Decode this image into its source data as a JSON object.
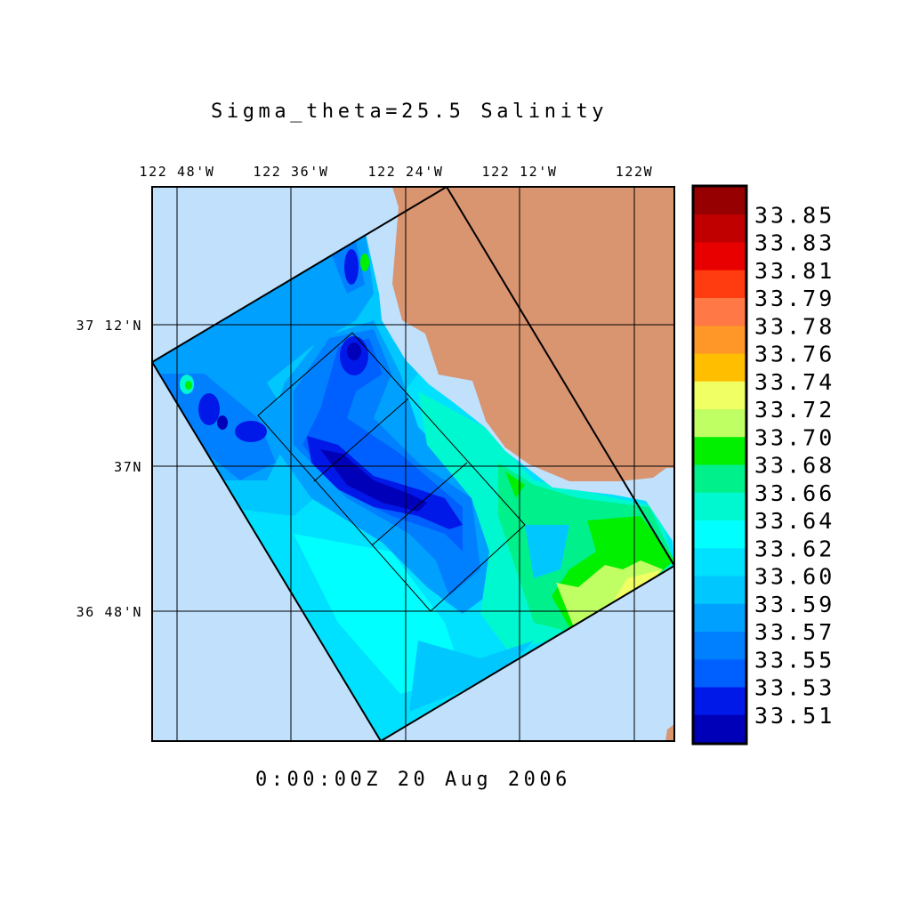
{
  "chart_data": {
    "type": "heatmap",
    "title": "Sigma_theta=25.5 Salinity",
    "time_label": "0:00:00Z  20 Aug 2006",
    "x_tick_labels": [
      "122 48'W",
      "122 36'W",
      "122 24'W",
      "122 12'W",
      "122W"
    ],
    "y_tick_labels": [
      "37 12'N",
      "37N",
      "36 48'N"
    ],
    "colorbar": {
      "labels": [
        "33.85",
        "33.83",
        "33.81",
        "33.79",
        "33.78",
        "33.76",
        "33.74",
        "33.72",
        "33.70",
        "33.68",
        "33.66",
        "33.64",
        "33.62",
        "33.60",
        "33.59",
        "33.57",
        "33.55",
        "33.53",
        "33.51"
      ],
      "colors": [
        "#960000",
        "#c00000",
        "#e80000",
        "#ff3c0f",
        "#ff7846",
        "#ff9628",
        "#ffbe00",
        "#f0ff64",
        "#c0ff64",
        "#00f000",
        "#00f08c",
        "#00f8d0",
        "#00ffff",
        "#00e0ff",
        "#00c8ff",
        "#00a0ff",
        "#0080ff",
        "#0060ff",
        "#0018e8",
        "#0000b8"
      ]
    },
    "colors": {
      "ocean_background": "#c0e0fc",
      "land": "#d99470"
    }
  }
}
